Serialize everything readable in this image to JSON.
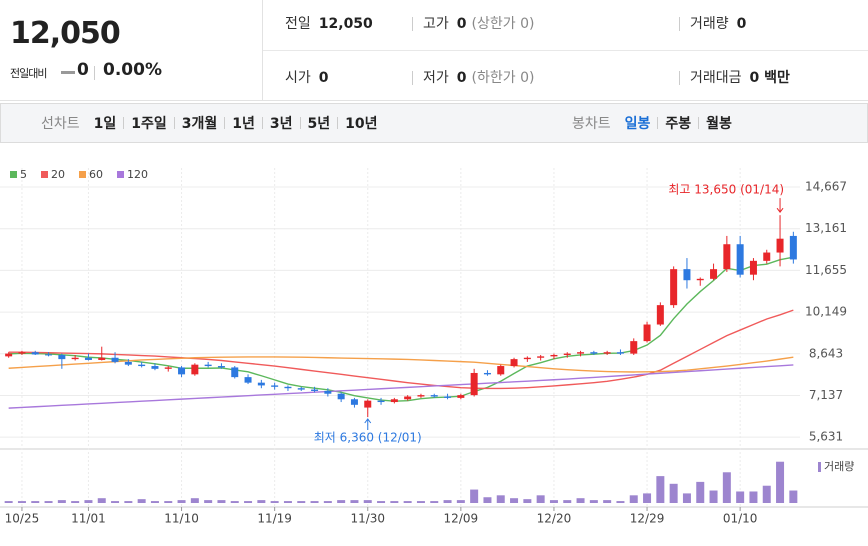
{
  "quote": {
    "price": "12,050",
    "change_label": "전일대비",
    "change": "0",
    "change_rate": "0.00%",
    "fields": [
      {
        "label": "전일",
        "value": "12,050"
      },
      {
        "label": "고가",
        "value": "0",
        "note": "(상한가 0)"
      },
      {
        "label": "거래량",
        "value": "0"
      },
      {
        "label": "시가",
        "value": "0"
      },
      {
        "label": "저가",
        "value": "0",
        "note": "(하한가 0)"
      },
      {
        "label": "거래대금",
        "value": "0 백만"
      }
    ]
  },
  "toolbar": {
    "line_label": "선차트",
    "line_periods": [
      "1일",
      "1주일",
      "3개월",
      "1년",
      "3년",
      "5년",
      "10년"
    ],
    "candle_label": "봉차트",
    "candle_periods": [
      "일봉",
      "주봉",
      "월봉"
    ],
    "selected": "일봉"
  },
  "chart_data": {
    "type": "candlestick",
    "categories": [
      null,
      "10/25",
      null,
      null,
      null,
      null,
      "11/01",
      null,
      null,
      null,
      null,
      null,
      null,
      "11/10",
      null,
      null,
      null,
      null,
      null,
      null,
      "11/19",
      null,
      null,
      null,
      null,
      null,
      null,
      "11/30",
      null,
      null,
      null,
      null,
      null,
      null,
      "12/09",
      null,
      null,
      null,
      null,
      null,
      null,
      "12/20",
      null,
      null,
      null,
      null,
      null,
      null,
      "12/29",
      null,
      null,
      null,
      null,
      null,
      null,
      "01/10",
      null,
      null,
      null,
      null
    ],
    "open": [
      8550,
      8650,
      8700,
      8620,
      8600,
      8450,
      8500,
      8420,
      8500,
      8350,
      8250,
      8200,
      8100,
      8150,
      7900,
      8250,
      8200,
      8150,
      7800,
      7600,
      7500,
      7450,
      7400,
      7350,
      7300,
      7200,
      7000,
      6700,
      6950,
      6900,
      7000,
      7100,
      7150,
      7100,
      7050,
      7150,
      7950,
      7900,
      8200,
      8450,
      8500,
      8550,
      8600,
      8650,
      8700,
      8650,
      8700,
      8650,
      9100,
      9700,
      10400,
      11700,
      11300,
      11350,
      11700,
      12600,
      11500,
      12000,
      12300,
      12900
    ],
    "high": [
      8700,
      8750,
      8750,
      8700,
      8650,
      8600,
      8650,
      8900,
      8700,
      8450,
      8350,
      8300,
      8200,
      8200,
      8300,
      8350,
      8300,
      8200,
      7900,
      7700,
      7600,
      7500,
      7450,
      7450,
      7400,
      7250,
      7050,
      7000,
      7050,
      7050,
      7150,
      7200,
      7200,
      7200,
      7200,
      8100,
      8050,
      8250,
      8500,
      8550,
      8600,
      8650,
      8700,
      8750,
      8750,
      8750,
      8800,
      9200,
      9800,
      10500,
      11800,
      12100,
      11400,
      11900,
      12900,
      12900,
      12100,
      12400,
      13650,
      13050
    ],
    "low": [
      8500,
      8600,
      8600,
      8550,
      8100,
      8400,
      8400,
      8400,
      8300,
      8200,
      8150,
      8050,
      8000,
      7800,
      7850,
      8150,
      8100,
      7750,
      7550,
      7400,
      7350,
      7300,
      7300,
      7250,
      7100,
      6900,
      6700,
      6360,
      6800,
      6850,
      6950,
      7050,
      7050,
      7000,
      7000,
      7100,
      7850,
      7850,
      8150,
      8350,
      8400,
      8450,
      8500,
      8550,
      8600,
      8600,
      8600,
      8600,
      9050,
      9650,
      10300,
      11000,
      11100,
      11300,
      11600,
      11400,
      11300,
      11900,
      11800,
      11900
    ],
    "close": [
      8650,
      8700,
      8620,
      8600,
      8450,
      8500,
      8420,
      8500,
      8350,
      8250,
      8200,
      8100,
      8150,
      7900,
      8250,
      8200,
      8150,
      7800,
      7600,
      7500,
      7450,
      7400,
      7350,
      7300,
      7200,
      7000,
      6800,
      6950,
      6900,
      7000,
      7100,
      7150,
      7100,
      7050,
      7150,
      7950,
      7900,
      8200,
      8450,
      8500,
      8550,
      8600,
      8650,
      8700,
      8650,
      8700,
      8650,
      9100,
      9700,
      10400,
      11700,
      11300,
      11350,
      11700,
      12600,
      11500,
      12000,
      12300,
      12800,
      12050
    ],
    "colors": {
      "up": "#e8262a",
      "down": "#2d79e0"
    },
    "moving_averages": [
      {
        "name": "5",
        "color": "#5cb85c",
        "values": [
          8640,
          8660,
          8650,
          8640,
          8604,
          8574,
          8518,
          8494,
          8444,
          8404,
          8344,
          8280,
          8210,
          8120,
          8120,
          8120,
          8130,
          8060,
          7990,
          7850,
          7700,
          7550,
          7460,
          7400,
          7340,
          7250,
          7130,
          7050,
          6970,
          6930,
          6950,
          7020,
          7060,
          7080,
          7110,
          7280,
          7430,
          7650,
          7930,
          8200,
          8320,
          8460,
          8550,
          8600,
          8630,
          8660,
          8670,
          8760,
          8960,
          9310,
          9910,
          10440,
          10890,
          11290,
          11730,
          11650,
          11830,
          11880,
          12040,
          12130
        ]
      },
      {
        "name": "20",
        "color": "#f05a5a",
        "values": [
          8700,
          8700,
          8690,
          8680,
          8670,
          8660,
          8650,
          8640,
          8620,
          8600,
          8580,
          8560,
          8530,
          8500,
          8470,
          8440,
          8400,
          8350,
          8300,
          8250,
          8200,
          8140,
          8080,
          8020,
          7960,
          7900,
          7840,
          7780,
          7720,
          7660,
          7600,
          7550,
          7500,
          7460,
          7420,
          7400,
          7390,
          7390,
          7400,
          7420,
          7450,
          7480,
          7520,
          7560,
          7600,
          7650,
          7720,
          7800,
          7900,
          8050,
          8300,
          8550,
          8800,
          9050,
          9300,
          9500,
          9700,
          9900,
          10050,
          10220
        ]
      },
      {
        "name": "60",
        "color": "#f5a04a",
        "values": [
          8120,
          8150,
          8180,
          8210,
          8240,
          8270,
          8300,
          8330,
          8360,
          8390,
          8420,
          8440,
          8460,
          8480,
          8500,
          8510,
          8520,
          8525,
          8530,
          8530,
          8530,
          8525,
          8520,
          8510,
          8500,
          8490,
          8480,
          8470,
          8460,
          8450,
          8440,
          8420,
          8400,
          8380,
          8360,
          8340,
          8300,
          8260,
          8220,
          8180,
          8140,
          8100,
          8070,
          8040,
          8020,
          8000,
          7990,
          7985,
          7990,
          8000,
          8020,
          8050,
          8100,
          8150,
          8200,
          8260,
          8320,
          8380,
          8450,
          8520
        ]
      },
      {
        "name": "120",
        "color": "#a878dc",
        "values": [
          6680,
          6705,
          6730,
          6755,
          6780,
          6805,
          6830,
          6855,
          6880,
          6905,
          6930,
          6955,
          6980,
          7005,
          7030,
          7055,
          7080,
          7105,
          7130,
          7155,
          7180,
          7205,
          7230,
          7255,
          7280,
          7305,
          7330,
          7355,
          7380,
          7405,
          7430,
          7455,
          7480,
          7505,
          7530,
          7555,
          7580,
          7605,
          7630,
          7655,
          7680,
          7705,
          7730,
          7760,
          7790,
          7820,
          7850,
          7880,
          7910,
          7940,
          7970,
          8000,
          8030,
          8060,
          8090,
          8120,
          8150,
          8180,
          8210,
          8240
        ]
      }
    ],
    "ylim": [
      5240,
      14920
    ],
    "yticks": [
      {
        "value": 5631,
        "label": "5,631"
      },
      {
        "value": 7137,
        "label": "7,137"
      },
      {
        "value": 8643,
        "label": "8,643"
      },
      {
        "value": 10149,
        "label": "10,149"
      },
      {
        "value": 11655,
        "label": "11,655"
      },
      {
        "value": 13161,
        "label": "13,161"
      },
      {
        "value": 14667,
        "label": "14,667"
      }
    ],
    "grid": true,
    "annotations": {
      "high": "최고 13,650 (01/14)",
      "low": "최저 6,360 (12/01)",
      "high_color": "#e8262a",
      "low_color": "#2d79e0"
    },
    "volume": {
      "name": "거래량",
      "color": "#9d85cf",
      "ylim": [
        0,
        50
      ],
      "values": [
        2,
        2,
        2,
        2,
        3,
        2,
        3,
        5,
        2,
        2,
        4,
        2,
        2,
        3,
        5,
        3,
        3,
        2,
        2,
        3,
        2,
        2,
        2,
        2,
        2,
        3,
        3,
        3,
        2,
        2,
        2,
        2,
        2,
        3,
        3,
        14,
        6,
        8,
        5,
        4,
        8,
        3,
        3,
        5,
        3,
        3,
        2,
        8,
        10,
        28,
        20,
        10,
        22,
        13,
        32,
        12,
        12,
        18,
        43,
        13
      ]
    }
  }
}
